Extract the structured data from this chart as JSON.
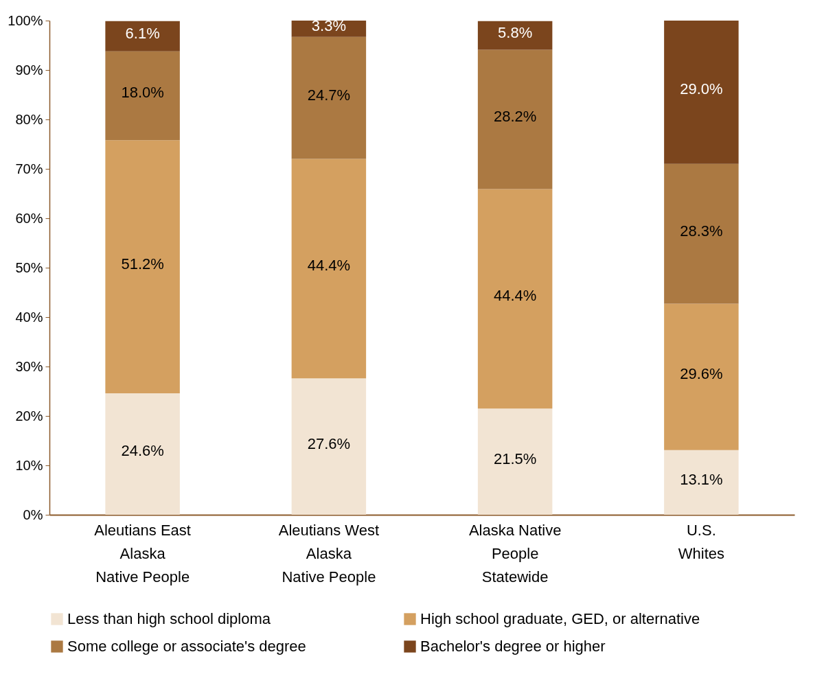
{
  "chart_data": {
    "type": "bar",
    "stacked": true,
    "grid": false,
    "legend": "bottom",
    "categories": [
      "Aleutians East\nAlaska\nNative People",
      "Aleutians West\nAlaska\nNative People",
      "Alaska Native\nPeople\nStatewide",
      "U.S.\nWhites"
    ],
    "series": [
      {
        "name": "Less than high school diploma",
        "color": "#f2e4d3",
        "values": [
          24.6,
          27.6,
          21.5,
          13.1
        ],
        "value_labels": [
          "24.6%",
          "27.6%",
          "21.5%",
          "13.1%"
        ]
      },
      {
        "name": "High school graduate, GED, or alternative",
        "color": "#d4a060",
        "values": [
          51.2,
          44.4,
          44.4,
          29.6
        ],
        "value_labels": [
          "51.2%",
          "44.4%",
          "44.4%",
          "29.6%"
        ]
      },
      {
        "name": "Some college or associate's degree",
        "color": "#ab7942",
        "values": [
          18.0,
          24.7,
          28.2,
          28.3
        ],
        "value_labels": [
          "18.0%",
          "24.7%",
          "28.2%",
          "28.3%"
        ]
      },
      {
        "name": "Bachelor's degree or higher",
        "color": "#7b451d",
        "values": [
          6.1,
          3.3,
          5.8,
          29.0
        ],
        "value_labels": [
          "6.1%",
          "3.3%",
          "5.8%",
          "29.0%"
        ]
      }
    ],
    "ylim": [
      0,
      100
    ],
    "yticks": [
      {
        "value": 0,
        "label": "0%"
      },
      {
        "value": 10,
        "label": "10%"
      },
      {
        "value": 20,
        "label": "20%"
      },
      {
        "value": 30,
        "label": "30%"
      },
      {
        "value": 40,
        "label": "40%"
      },
      {
        "value": 50,
        "label": "50%"
      },
      {
        "value": 60,
        "label": "60%"
      },
      {
        "value": 70,
        "label": "70%"
      },
      {
        "value": 80,
        "label": "80%"
      },
      {
        "value": 90,
        "label": "90%"
      },
      {
        "value": 100,
        "label": "100%"
      }
    ]
  }
}
